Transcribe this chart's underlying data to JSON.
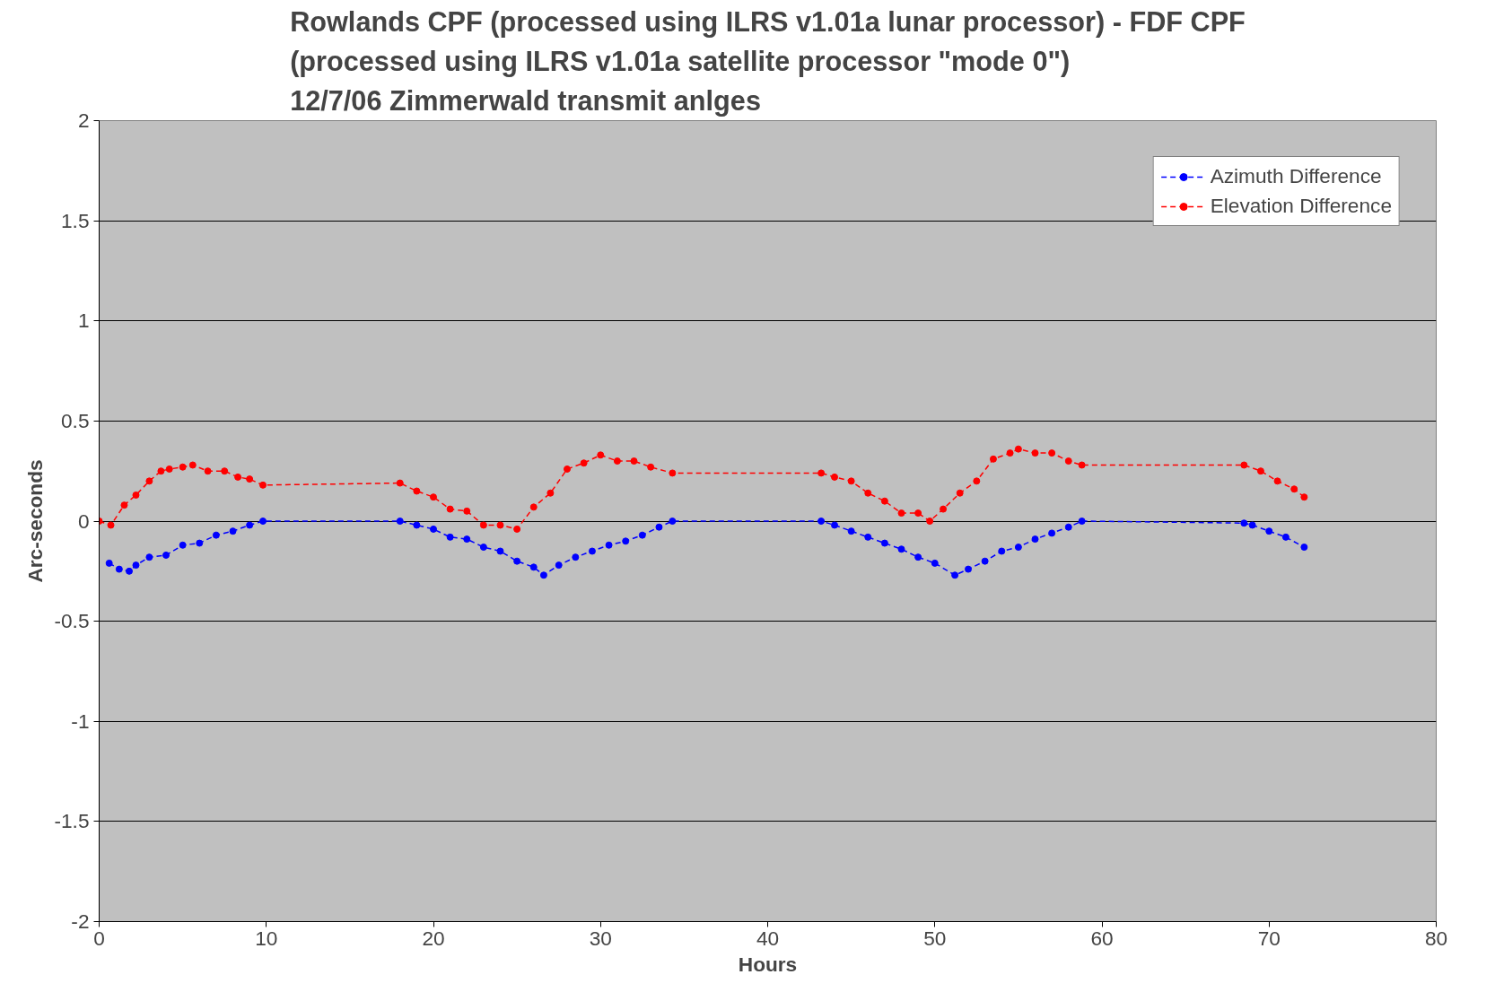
{
  "chart_data": {
    "type": "line",
    "title": "Rowlands CPF (processed using ILRS v1.01a lunar processor) - FDF CPF\n(processed using ILRS v1.01a satellite processor \"mode 0\")\n12/7/06 Zimmerwald transmit anlges",
    "xlabel": "Hours",
    "ylabel": "Arc-seconds",
    "xlim": [
      0,
      80
    ],
    "ylim": [
      -2,
      2
    ],
    "xticks": [
      0,
      10,
      20,
      30,
      40,
      50,
      60,
      70,
      80
    ],
    "yticks": [
      -2,
      -1.5,
      -1,
      -0.5,
      0,
      0.5,
      1,
      1.5,
      2
    ],
    "grid": "y",
    "legend": "top right",
    "marker": "circle",
    "line_style": "dashed",
    "series": [
      {
        "name": "Azimuth Difference",
        "color": "#0000ff",
        "x": [
          0.6,
          1.2,
          1.8,
          2.2,
          3,
          4,
          5,
          6,
          7,
          8,
          9,
          9.8,
          18,
          19,
          20,
          21,
          22,
          23,
          24,
          25,
          26,
          26.6,
          27.5,
          28.5,
          29.5,
          30.5,
          31.5,
          32.5,
          33.5,
          34.3,
          43.2,
          44,
          45,
          46,
          47,
          48,
          49,
          50,
          51.2,
          52,
          53,
          54,
          55,
          56,
          57,
          58,
          58.8,
          68.5,
          69,
          70,
          71,
          72.1
        ],
        "values": [
          -0.21,
          -0.24,
          -0.25,
          -0.22,
          -0.18,
          -0.17,
          -0.12,
          -0.11,
          -0.07,
          -0.05,
          -0.02,
          0,
          0,
          -0.02,
          -0.04,
          -0.08,
          -0.09,
          -0.13,
          -0.15,
          -0.2,
          -0.23,
          -0.27,
          -0.22,
          -0.18,
          -0.15,
          -0.12,
          -0.1,
          -0.07,
          -0.03,
          0,
          0,
          -0.02,
          -0.05,
          -0.08,
          -0.11,
          -0.14,
          -0.18,
          -0.21,
          -0.27,
          -0.24,
          -0.2,
          -0.15,
          -0.13,
          -0.09,
          -0.06,
          -0.03,
          0,
          -0.01,
          -0.02,
          -0.05,
          -0.08,
          -0.13
        ]
      },
      {
        "name": "Elevation Difference",
        "color": "#ff0000",
        "x": [
          0,
          0.7,
          1.5,
          2.2,
          3,
          3.7,
          4.2,
          5,
          5.6,
          6.5,
          7.5,
          8.3,
          9,
          9.8,
          18,
          19,
          20,
          21,
          22,
          23,
          24,
          25,
          26,
          27,
          28,
          29,
          30,
          31,
          32,
          33,
          34.3,
          43.2,
          44,
          45,
          46,
          47,
          48,
          49,
          49.7,
          50.5,
          51.5,
          52.5,
          53.5,
          54.5,
          55,
          56,
          57,
          58,
          58.8,
          68.5,
          69.5,
          70.5,
          71.5,
          72.1
        ],
        "values": [
          0,
          -0.02,
          0.08,
          0.13,
          0.2,
          0.25,
          0.26,
          0.27,
          0.28,
          0.25,
          0.25,
          0.22,
          0.21,
          0.18,
          0.19,
          0.15,
          0.12,
          0.06,
          0.05,
          -0.02,
          -0.02,
          -0.04,
          0.07,
          0.14,
          0.26,
          0.29,
          0.33,
          0.3,
          0.3,
          0.27,
          0.24,
          0.24,
          0.22,
          0.2,
          0.14,
          0.1,
          0.04,
          0.04,
          0,
          0.06,
          0.14,
          0.2,
          0.31,
          0.34,
          0.36,
          0.34,
          0.34,
          0.3,
          0.28,
          0.28,
          0.25,
          0.2,
          0.16,
          0.12
        ]
      }
    ]
  }
}
